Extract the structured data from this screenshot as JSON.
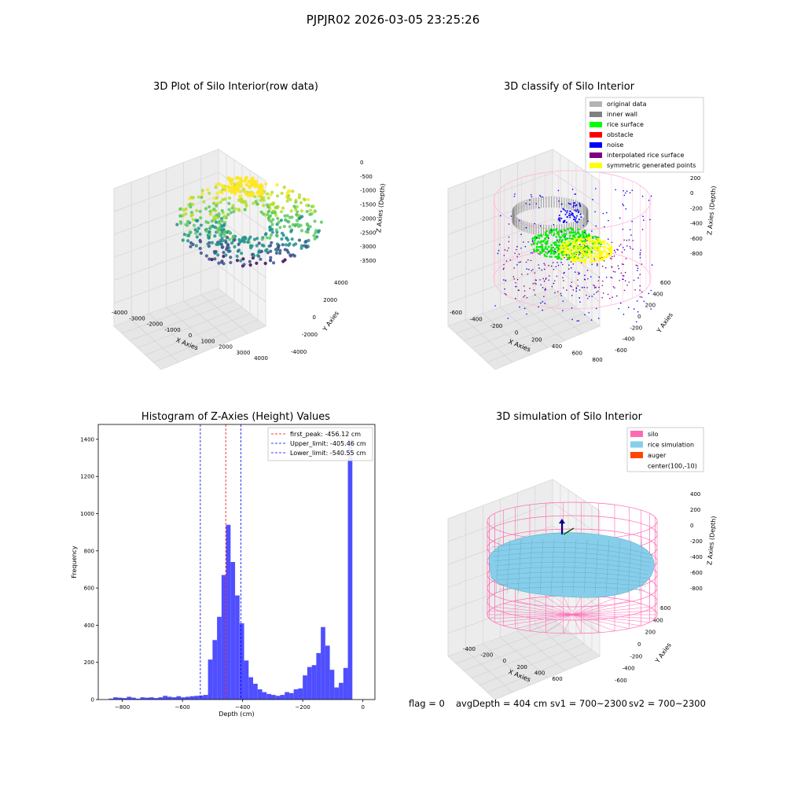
{
  "figure_title": "PJPJR02 2026-03-05 23:25:26",
  "panels": {
    "raw": {
      "title": "3D Plot of Silo Interior(row data)",
      "xlabel": "X Axies",
      "ylabel": "Y Axies",
      "zlabel": "Z Axies (Depth)",
      "x_ticks": [
        "-4000",
        "-3000",
        "-2000",
        "-1000",
        "0",
        "1000",
        "2000",
        "3000",
        "4000"
      ],
      "y_ticks": [
        "-4000",
        "-2000",
        "0",
        "2000",
        "4000"
      ],
      "z_ticks": [
        "0",
        "-500",
        "-1000",
        "-1500",
        "-2000",
        "-2500",
        "-3000",
        "-3500"
      ]
    },
    "classify": {
      "title": "3D classify of Silo Interior",
      "xlabel": "X Axies",
      "ylabel": "Y Axies",
      "zlabel": "Z Axies (Depth)",
      "x_ticks": [
        "-600",
        "-400",
        "-200",
        "0",
        "200",
        "400",
        "600",
        "800"
      ],
      "y_ticks": [
        "-600",
        "-400",
        "-200",
        "0",
        "200",
        "400",
        "600"
      ],
      "z_ticks": [
        "200",
        "0",
        "-200",
        "-400",
        "-600",
        "-800"
      ],
      "z_top_partial": "0",
      "legend": [
        {
          "label": "original data",
          "color": "#b3b3b3"
        },
        {
          "label": "inner wall",
          "color": "#808080"
        },
        {
          "label": "rice surface",
          "color": "#00ff00"
        },
        {
          "label": "obstacle",
          "color": "#ff0000"
        },
        {
          "label": "noise",
          "color": "#0000ff"
        },
        {
          "label": "interpolated rice surface",
          "color": "#800080"
        },
        {
          "label": "symmetric generated points",
          "color": "#ffff00"
        }
      ]
    },
    "histogram": {
      "title": "Histogram of Z-Axies (Height) Values"
    },
    "simulation": {
      "title": "3D simulation of Silo Interior",
      "xlabel": "X Axies",
      "ylabel": "Y Axies",
      "zlabel": "Z Axies (Depth)",
      "x_ticks": [
        "-400",
        "-200",
        "0",
        "200",
        "400",
        "600"
      ],
      "y_ticks": [
        "-600",
        "-400",
        "-200",
        "0",
        "200",
        "400",
        "600"
      ],
      "z_ticks": [
        "400",
        "200",
        "0",
        "-200",
        "-400",
        "-600",
        "-800"
      ],
      "legend": [
        {
          "label": "silo",
          "color": "#ff69b4"
        },
        {
          "label": "rice simulation",
          "color": "#87ceeb"
        },
        {
          "label": "auger",
          "color": "#ff4500"
        },
        {
          "label": "center(100,-10)",
          "color": ""
        }
      ]
    }
  },
  "status": {
    "flag": "flag = 0",
    "avg_depth": "avgDepth = 404 cm",
    "sv1": "sv1 = 700~2300",
    "sv2": "sv2 = 700~2300"
  },
  "chart_data": [
    {
      "type": "scatter",
      "title": "3D Plot of Silo Interior(row data)",
      "xlabel": "X Axies",
      "ylabel": "Y Axies",
      "zlabel": "Z Axies (Depth)",
      "xlim": [
        -4000,
        4000
      ],
      "ylim": [
        -4000,
        4000
      ],
      "zlim": [
        -3800,
        0
      ],
      "colormap": "viridis",
      "points_approx": [
        [
          -500,
          1500,
          -300
        ],
        [
          200,
          1800,
          -400
        ],
        [
          800,
          2200,
          -600
        ],
        [
          1800,
          2400,
          -1100
        ],
        [
          2600,
          1800,
          -1500
        ],
        [
          3000,
          600,
          -2000
        ],
        [
          2800,
          -600,
          -2600
        ],
        [
          2000,
          -1800,
          -3200
        ],
        [
          500,
          -2600,
          -3500
        ],
        [
          -1200,
          -2600,
          -3400
        ],
        [
          -2600,
          -1800,
          -3000
        ],
        [
          -3200,
          -600,
          -2700
        ],
        [
          -2800,
          800,
          -2200
        ],
        [
          -1800,
          1400,
          -1700
        ],
        [
          0,
          0,
          -2000
        ],
        [
          500,
          -500,
          -2300
        ],
        [
          -500,
          400,
          -1800
        ]
      ]
    },
    {
      "type": "scatter",
      "title": "3D classify of Silo Interior",
      "xlabel": "X Axies",
      "ylabel": "Y Axies",
      "zlabel": "Z Axies (Depth)",
      "xlim": [
        -600,
        800
      ],
      "ylim": [
        -600,
        600
      ],
      "zlim": [
        -900,
        200
      ],
      "series": [
        {
          "name": "inner wall",
          "type": "ring",
          "center": [
            100,
            -10
          ],
          "radius": 500,
          "z": -300
        },
        {
          "name": "rice surface",
          "type": "blob",
          "center": [
            100,
            -10
          ],
          "radius": 220,
          "z": -560
        },
        {
          "name": "symmetric generated points",
          "type": "blob",
          "center": [
            250,
            -150
          ],
          "radius": 180,
          "z": -620
        },
        {
          "name": "noise",
          "type": "scatter"
        },
        {
          "name": "interpolated rice surface",
          "type": "grid",
          "z": -720
        }
      ]
    },
    {
      "type": "bar",
      "title": "Histogram of Z-Axies (Height) Values",
      "xlabel": "Depth (cm)",
      "ylabel": "Frequency",
      "xlim": [
        -880,
        40
      ],
      "ylim": [
        0,
        1480
      ],
      "x_ticks": [
        -800,
        -600,
        -400,
        -200,
        0
      ],
      "y_ticks": [
        0,
        200,
        400,
        600,
        800,
        1000,
        1200,
        1400
      ],
      "bin_width": 15,
      "bins_left": [
        -845,
        -830,
        -815,
        -800,
        -785,
        -770,
        -755,
        -740,
        -725,
        -710,
        -695,
        -680,
        -665,
        -650,
        -635,
        -620,
        -605,
        -590,
        -575,
        -560,
        -545,
        -530,
        -515,
        -500,
        -485,
        -470,
        -455,
        -440,
        -425,
        -410,
        -395,
        -380,
        -365,
        -350,
        -335,
        -320,
        -305,
        -290,
        -275,
        -260,
        -245,
        -230,
        -215,
        -200,
        -185,
        -170,
        -155,
        -140,
        -125,
        -110,
        -95,
        -80,
        -65,
        -50,
        -35,
        -20,
        -5
      ],
      "values": [
        5,
        12,
        10,
        8,
        15,
        10,
        5,
        12,
        10,
        12,
        8,
        12,
        20,
        15,
        12,
        18,
        12,
        15,
        18,
        20,
        22,
        25,
        215,
        320,
        445,
        670,
        940,
        740,
        560,
        410,
        210,
        120,
        85,
        55,
        40,
        30,
        25,
        20,
        25,
        40,
        35,
        55,
        60,
        130,
        175,
        185,
        250,
        390,
        290,
        160,
        65,
        90,
        170,
        1400,
        0,
        0,
        0
      ],
      "lines": [
        {
          "label": "first_peak: -456.12 cm",
          "x": -456.12,
          "color": "#ff0000"
        },
        {
          "label": "Upper_limit: -405.46 cm",
          "x": -405.46,
          "color": "#0000ff"
        },
        {
          "label": "Lower_limit: -540.55 cm",
          "x": -540.55,
          "color": "#0000ff"
        }
      ],
      "bar_color": "#4f4fff",
      "legend": "top-right"
    },
    {
      "type": "surface",
      "title": "3D simulation of Silo Interior",
      "xlabel": "X Axies",
      "ylabel": "Y Axies",
      "zlabel": "Z Axies (Depth)",
      "xlim": [
        -500,
        700
      ],
      "ylim": [
        -700,
        700
      ],
      "zlim": [
        -900,
        450
      ],
      "series": [
        {
          "name": "silo",
          "type": "wireframe-cylinder",
          "center": [
            100,
            -10
          ],
          "radius": 560,
          "z": [
            -900,
            200
          ]
        },
        {
          "name": "rice simulation",
          "type": "surface",
          "avg_z": -404
        },
        {
          "name": "auger"
        },
        {
          "name": "center(100,-10)"
        }
      ]
    }
  ]
}
